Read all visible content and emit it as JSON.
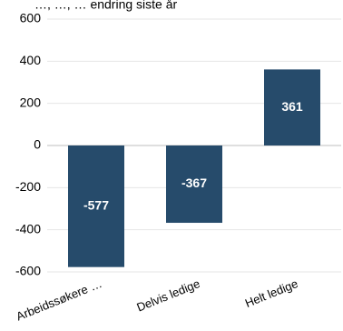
{
  "chart_data": {
    "type": "bar",
    "title": "…, …, … endring siste år",
    "categories": [
      "Arbeidssøkere …",
      "Delvis ledige",
      "Helt ledige"
    ],
    "values": [
      -577,
      -367,
      361
    ],
    "value_labels": [
      "-577",
      "-367",
      "361"
    ],
    "ylim": [
      -600,
      600
    ],
    "yticks": [
      600,
      400,
      200,
      0,
      -200,
      -400,
      -600
    ],
    "ytick_labels": [
      "600",
      "400",
      "200",
      "0",
      "-200",
      "-400",
      "-600"
    ],
    "grid": true,
    "bar_color": "#264B6B",
    "grid_color": "#E6E6E6",
    "axis_color": "#BFBFBF"
  }
}
